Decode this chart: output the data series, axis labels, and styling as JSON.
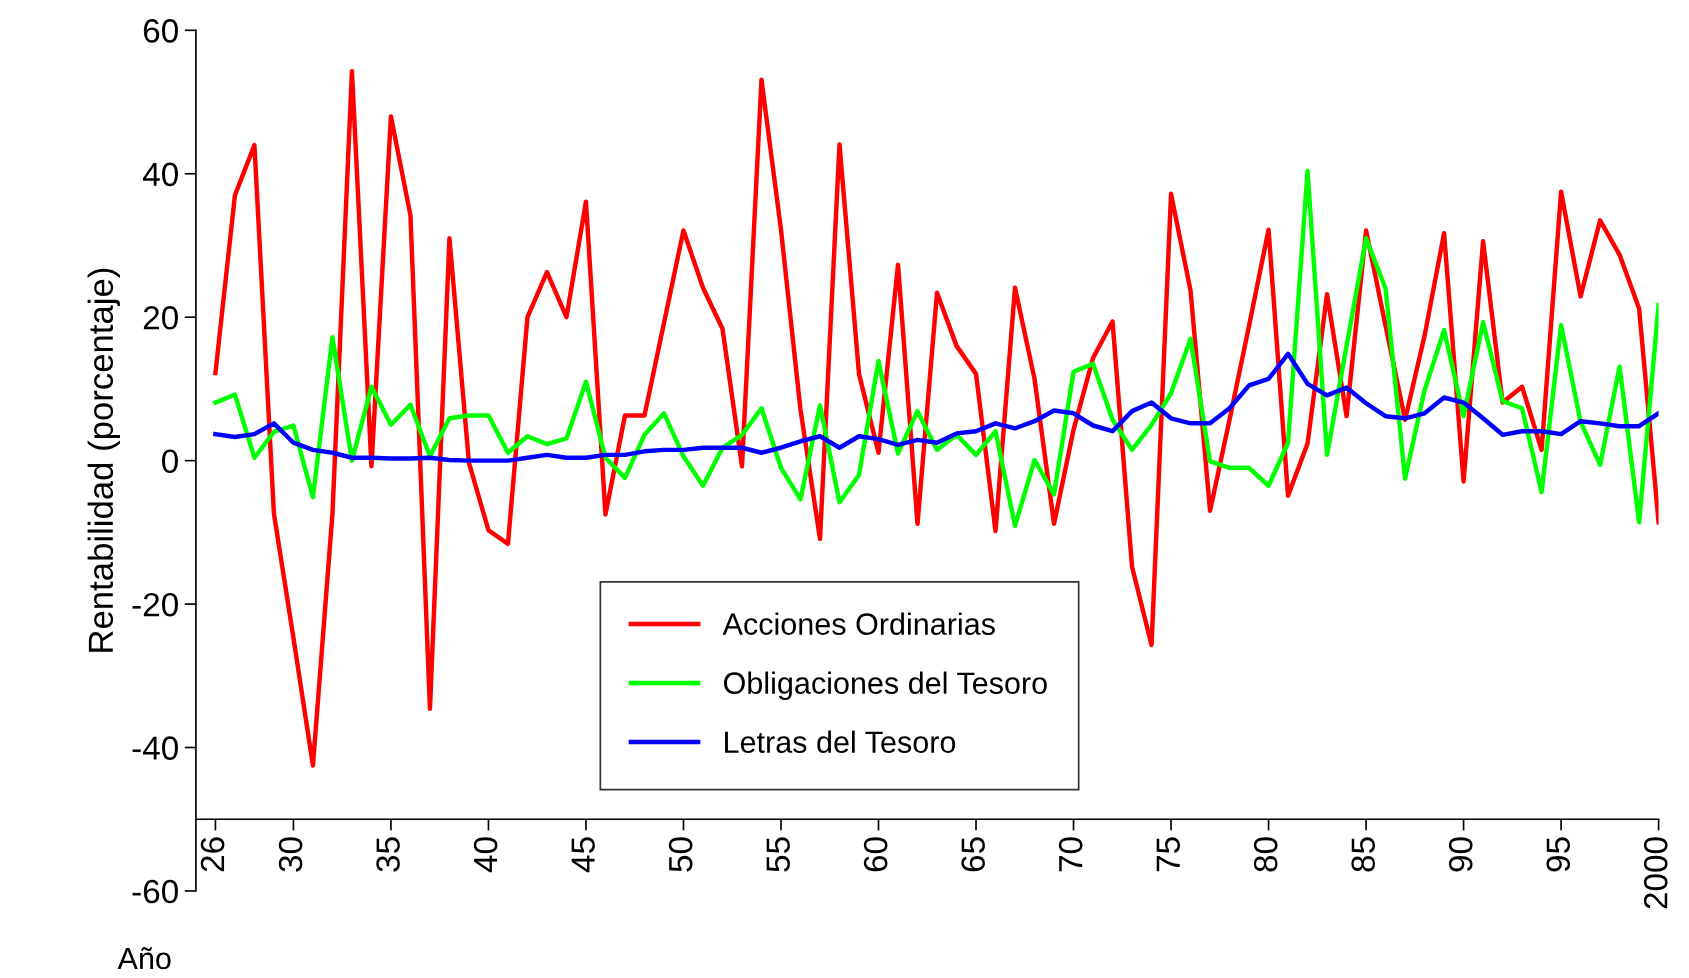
{
  "chart_data": {
    "type": "line",
    "xlabel": "Año",
    "ylabel": "Rentabilidad (porcentaje)",
    "x": [
      1926,
      1927,
      1928,
      1929,
      1930,
      1931,
      1932,
      1933,
      1934,
      1935,
      1936,
      1937,
      1938,
      1939,
      1940,
      1941,
      1942,
      1943,
      1944,
      1945,
      1946,
      1947,
      1948,
      1949,
      1950,
      1951,
      1952,
      1953,
      1954,
      1955,
      1956,
      1957,
      1958,
      1959,
      1960,
      1961,
      1962,
      1963,
      1964,
      1965,
      1966,
      1967,
      1968,
      1969,
      1970,
      1971,
      1972,
      1973,
      1974,
      1975,
      1976,
      1977,
      1978,
      1979,
      1980,
      1981,
      1982,
      1983,
      1984,
      1985,
      1986,
      1987,
      1988,
      1989,
      1990,
      1991,
      1992,
      1993,
      1994,
      1995,
      1996,
      1997,
      1998,
      1999,
      2000
    ],
    "series": [
      {
        "name": "Acciones Ordinarias",
        "color": "#ff0000",
        "values": [
          12.2,
          37,
          44,
          -7.4,
          -24.7,
          -42.5,
          -7.4,
          54.3,
          -0.8,
          48,
          34.2,
          -34.6,
          31,
          -0.3,
          -9.7,
          -11.6,
          20,
          26.3,
          20,
          36.1,
          -7.5,
          6.3,
          6.3,
          19.2,
          32.1,
          24.1,
          18.4,
          -0.8,
          53.1,
          32.2,
          7.1,
          -10.9,
          44.1,
          12.1,
          1.1,
          27.3,
          -8.8,
          23.4,
          16,
          12.1,
          -9.8,
          24.1,
          11.4,
          -8.8,
          4.3,
          14.3,
          19.4,
          -14.8,
          -25.7,
          37.2,
          23.7,
          -7,
          5.7,
          18.8,
          32.2,
          -4.9,
          2.4,
          23.2,
          6.2,
          32.1,
          18.8,
          5.7,
          17.4,
          31.7,
          -2.9,
          30.6,
          8.1,
          10.3,
          1.5,
          37.5,
          22.9,
          33.5,
          28.7,
          21.2,
          -8.6
        ]
      },
      {
        "name": "Obligaciones del Tesoro",
        "color": "#00ff00",
        "values": [
          8.1,
          9.2,
          0.4,
          4,
          4.9,
          -5.1,
          17.2,
          0,
          10.3,
          5,
          7.8,
          0.6,
          5.9,
          6.3,
          6.3,
          1.1,
          3.4,
          2.3,
          3.1,
          11,
          0.4,
          -2.4,
          3.6,
          6.6,
          0.6,
          -3.5,
          1.8,
          3.6,
          7.3,
          -1,
          -5.4,
          7.7,
          -5.8,
          -2,
          13.9,
          1,
          6.9,
          1.5,
          3.6,
          0.8,
          4.1,
          -9.1,
          0.1,
          -4.7,
          12.4,
          13.5,
          5.7,
          1.5,
          5,
          9.4,
          17,
          -0.1,
          -1,
          -1,
          -3.5,
          2.5,
          40.4,
          0.8,
          16,
          31,
          24,
          -2.5,
          9.8,
          18.2,
          6.2,
          19.3,
          8.3,
          7.3,
          -4.4,
          18.9,
          5.4,
          -0.6,
          13.1,
          -8.6,
          21.7
        ]
      },
      {
        "name": "Letras del Tesoro",
        "color": "#0000ff",
        "values": [
          3.7,
          3.3,
          3.7,
          5.2,
          2.5,
          1.5,
          1.1,
          0.4,
          0.4,
          0.3,
          0.3,
          0.4,
          0.1,
          0,
          0,
          0,
          0.4,
          0.8,
          0.4,
          0.4,
          0.8,
          0.8,
          1.3,
          1.5,
          1.5,
          1.8,
          1.8,
          1.8,
          1.1,
          1.8,
          2.7,
          3.4,
          1.8,
          3.4,
          3,
          2.2,
          2.9,
          2.5,
          3.8,
          4.1,
          5.2,
          4.5,
          5.5,
          7,
          6.6,
          4.9,
          4.1,
          6.9,
          8.1,
          5.9,
          5.2,
          5.2,
          7.3,
          10.5,
          11.4,
          14.9,
          10.7,
          9.1,
          10.2,
          8,
          6.2,
          5.9,
          6.6,
          8.8,
          8.1,
          5.9,
          3.6,
          4.1,
          4.1,
          3.7,
          5.5,
          5.2,
          4.8,
          4.8,
          6.6
        ]
      }
    ],
    "xlim": [
      1925,
      2000
    ],
    "xticks": [
      {
        "value": 1926,
        "label": "26"
      },
      {
        "value": 1930,
        "label": "30"
      },
      {
        "value": 1935,
        "label": "35"
      },
      {
        "value": 1940,
        "label": "40"
      },
      {
        "value": 1945,
        "label": "45"
      },
      {
        "value": 1950,
        "label": "50"
      },
      {
        "value": 1955,
        "label": "55"
      },
      {
        "value": 1960,
        "label": "60"
      },
      {
        "value": 1965,
        "label": "65"
      },
      {
        "value": 1970,
        "label": "70"
      },
      {
        "value": 1975,
        "label": "75"
      },
      {
        "value": 1980,
        "label": "80"
      },
      {
        "value": 1985,
        "label": "85"
      },
      {
        "value": 1990,
        "label": "90"
      },
      {
        "value": 1995,
        "label": "95"
      },
      {
        "value": 2000,
        "label": "2000"
      }
    ],
    "ylim": [
      -60,
      60
    ],
    "yticks": [
      -60,
      -40,
      -20,
      0,
      20,
      40,
      60
    ],
    "grid": false,
    "legend": "bottom",
    "marker": "none",
    "line_style": "solid"
  }
}
